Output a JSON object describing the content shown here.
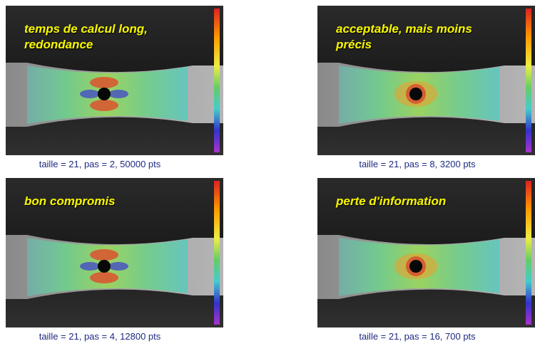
{
  "panels": [
    {
      "label": [
        "temps de calcul long,",
        "redondance"
      ],
      "caption": "taille = 21, pas = 2, 50000 pts"
    },
    {
      "label": [
        "acceptable, mais moins",
        "précis"
      ],
      "caption": "taille = 21, pas = 8, 3200 pts"
    },
    {
      "label": [
        "bon compromis"
      ],
      "caption": "taille = 21, pas = 4, 12800 pts"
    },
    {
      "label": [
        "perte d'information"
      ],
      "caption": "taille = 21, pas = 16, 700 pts"
    }
  ]
}
